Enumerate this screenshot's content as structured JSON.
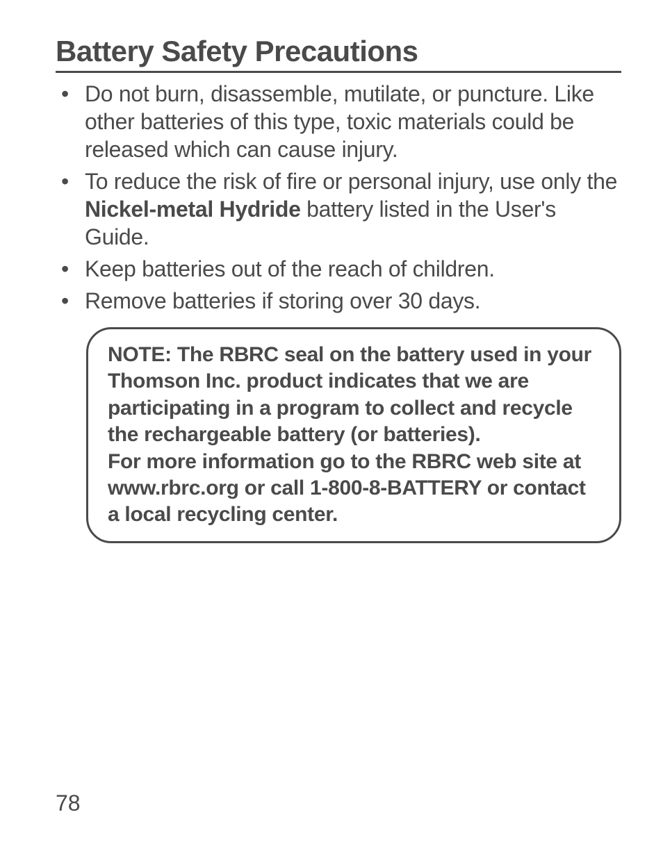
{
  "heading": "Battery Safety Precautions",
  "bullets": [
    {
      "pre": "Do not burn, disassemble, mutilate, or puncture. Like other batteries of this type, toxic materials could be released which can cause injury."
    },
    {
      "pre": "To reduce the risk of fire or personal injury, use only the ",
      "bold": "Nickel-metal Hydride",
      "post": " battery listed in the User's Guide."
    },
    {
      "pre": "Keep batteries out of the reach of children."
    },
    {
      "pre": "Remove batteries if storing over 30 days."
    }
  ],
  "note": {
    "line1": "NOTE: The RBRC seal on the battery used in your Thomson Inc. product indicates that we are participating in a program to collect and recycle the rechargeable battery (or batteries).",
    "line2": "For more information go to the RBRC web site at www.rbrc.org or call 1-800-8-BATTERY or contact a local recycling center."
  },
  "pageNumber": "78",
  "colors": {
    "text": "#4a4a4a",
    "background": "#ffffff",
    "border": "#4a4a4a"
  },
  "typography": {
    "heading_fontsize": 42,
    "body_fontsize": 32,
    "note_fontsize": 30,
    "pagenum_fontsize": 32
  }
}
